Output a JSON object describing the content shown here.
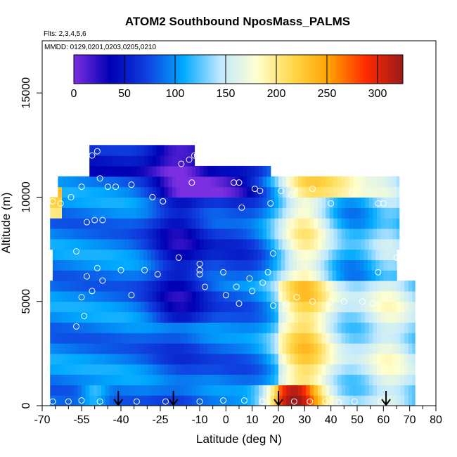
{
  "chart_data": {
    "type": "heatmap",
    "title": "ATOM2 Southbound NposMass_PALMS",
    "subtitle_flights": "Flts: 2,3,4,5,6",
    "subtitle_dates": "MMDD: 0129,0201,0203,0205,0210",
    "xlabel": "Latitude (deg N)",
    "ylabel": "Altitude (m)",
    "xlim": [
      -70,
      80
    ],
    "ylim": [
      0,
      17500
    ],
    "x_ticks": [
      -70,
      -55,
      -40,
      -25,
      -10,
      0,
      10,
      20,
      30,
      40,
      50,
      60,
      70,
      80
    ],
    "x_ticks_minor": [
      -65,
      -60,
      -50,
      -45,
      -35,
      -30,
      -20,
      -15,
      -5,
      5,
      15,
      25,
      35,
      45,
      55,
      65,
      75
    ],
    "y_ticks": [
      0,
      5000,
      10000,
      15000
    ],
    "colorbar": {
      "min": 0,
      "max": 325,
      "ticks": [
        0,
        50,
        100,
        150,
        200,
        250,
        300
      ],
      "colors": [
        "#7b2fe0",
        "#0000b4",
        "#1040e0",
        "#00aaff",
        "#bfe8ff",
        "#ffffd0",
        "#ffd84a",
        "#ff9f00",
        "#ff2a00",
        "#9a1a1a"
      ]
    },
    "arrow_latitudes": [
      -41,
      -20,
      20,
      61
    ],
    "observations": [
      {
        "lat": -66,
        "alt": 200
      },
      {
        "lat": -60,
        "alt": 200
      },
      {
        "lat": -55,
        "alt": 250
      },
      {
        "lat": -48,
        "alt": 200
      },
      {
        "lat": -34,
        "alt": 200
      },
      {
        "lat": -23,
        "alt": 200
      },
      {
        "lat": -10,
        "alt": 200
      },
      {
        "lat": -1,
        "alt": 250
      },
      {
        "lat": 7,
        "alt": 250
      },
      {
        "lat": 14,
        "alt": 200
      },
      {
        "lat": 26,
        "alt": 200
      },
      {
        "lat": 32,
        "alt": 200
      },
      {
        "lat": 38,
        "alt": 200
      },
      {
        "lat": 43,
        "alt": 150
      },
      {
        "lat": 49,
        "alt": 200
      },
      {
        "lat": 59,
        "alt": 200
      },
      {
        "lat": -57,
        "alt": 3800
      },
      {
        "lat": -54,
        "alt": 4300
      },
      {
        "lat": -55,
        "alt": 5200
      },
      {
        "lat": -51,
        "alt": 5500
      },
      {
        "lat": -36,
        "alt": 5300
      },
      {
        "lat": -8,
        "alt": 5700
      },
      {
        "lat": 0,
        "alt": 5300
      },
      {
        "lat": 4,
        "alt": 5700
      },
      {
        "lat": 5,
        "alt": 4900
      },
      {
        "lat": 10,
        "alt": 5500
      },
      {
        "lat": 14,
        "alt": 5900
      },
      {
        "lat": 18,
        "alt": 4800
      },
      {
        "lat": 23,
        "alt": 4900
      },
      {
        "lat": 27,
        "alt": 5200
      },
      {
        "lat": 33,
        "alt": 5000
      },
      {
        "lat": 40,
        "alt": 5000
      },
      {
        "lat": 45,
        "alt": 5000
      },
      {
        "lat": 52,
        "alt": 5000
      },
      {
        "lat": 56,
        "alt": 4900
      },
      {
        "lat": -53,
        "alt": 6200
      },
      {
        "lat": -47,
        "alt": 6000
      },
      {
        "lat": -40,
        "alt": 6500
      },
      {
        "lat": -31,
        "alt": 6500
      },
      {
        "lat": -26,
        "alt": 6300
      },
      {
        "lat": -18,
        "alt": 7100
      },
      {
        "lat": -10,
        "alt": 6500
      },
      {
        "lat": -10,
        "alt": 6800
      },
      {
        "lat": -10,
        "alt": 6300
      },
      {
        "lat": -1,
        "alt": 6400
      },
      {
        "lat": 9,
        "alt": 6100
      },
      {
        "lat": 16,
        "alt": 6400
      },
      {
        "lat": 18,
        "alt": 7300
      },
      {
        "lat": 58,
        "alt": 6400
      },
      {
        "lat": 65,
        "alt": 7100
      },
      {
        "lat": -57,
        "alt": 7400
      },
      {
        "lat": -49,
        "alt": 6600
      },
      {
        "lat": -53,
        "alt": 8800
      },
      {
        "lat": -50,
        "alt": 8900
      },
      {
        "lat": -47,
        "alt": 8900
      },
      {
        "lat": -63,
        "alt": 9700
      },
      {
        "lat": -59,
        "alt": 10000
      },
      {
        "lat": -66,
        "alt": 9800
      },
      {
        "lat": -55,
        "alt": 10500
      },
      {
        "lat": -45,
        "alt": 10500
      },
      {
        "lat": -42,
        "alt": 10500
      },
      {
        "lat": -36,
        "alt": 10600
      },
      {
        "lat": -28,
        "alt": 10000
      },
      {
        "lat": -24,
        "alt": 9800
      },
      {
        "lat": -13,
        "alt": 10700
      },
      {
        "lat": 3,
        "alt": 10700
      },
      {
        "lat": 5,
        "alt": 10700
      },
      {
        "lat": 6,
        "alt": 9500
      },
      {
        "lat": 11,
        "alt": 10400
      },
      {
        "lat": 13,
        "alt": 10300
      },
      {
        "lat": 17,
        "alt": 9700
      },
      {
        "lat": 21,
        "alt": 10300
      },
      {
        "lat": 25,
        "alt": 10100
      },
      {
        "lat": 33,
        "alt": 10400
      },
      {
        "lat": 40,
        "alt": 9700
      },
      {
        "lat": 48,
        "alt": 10200
      },
      {
        "lat": 58,
        "alt": 9700
      },
      {
        "lat": 60,
        "alt": 9700
      },
      {
        "lat": -48,
        "alt": 10900
      },
      {
        "lat": -55,
        "alt": 11700
      },
      {
        "lat": -51,
        "alt": 12000
      },
      {
        "lat": -49,
        "alt": 12200
      },
      {
        "lat": -17,
        "alt": 11600
      },
      {
        "lat": -14,
        "alt": 11800
      },
      {
        "lat": -12,
        "alt": 12000
      },
      {
        "lat": -11,
        "alt": 12000
      },
      {
        "lat": -10,
        "alt": 11800
      }
    ]
  }
}
